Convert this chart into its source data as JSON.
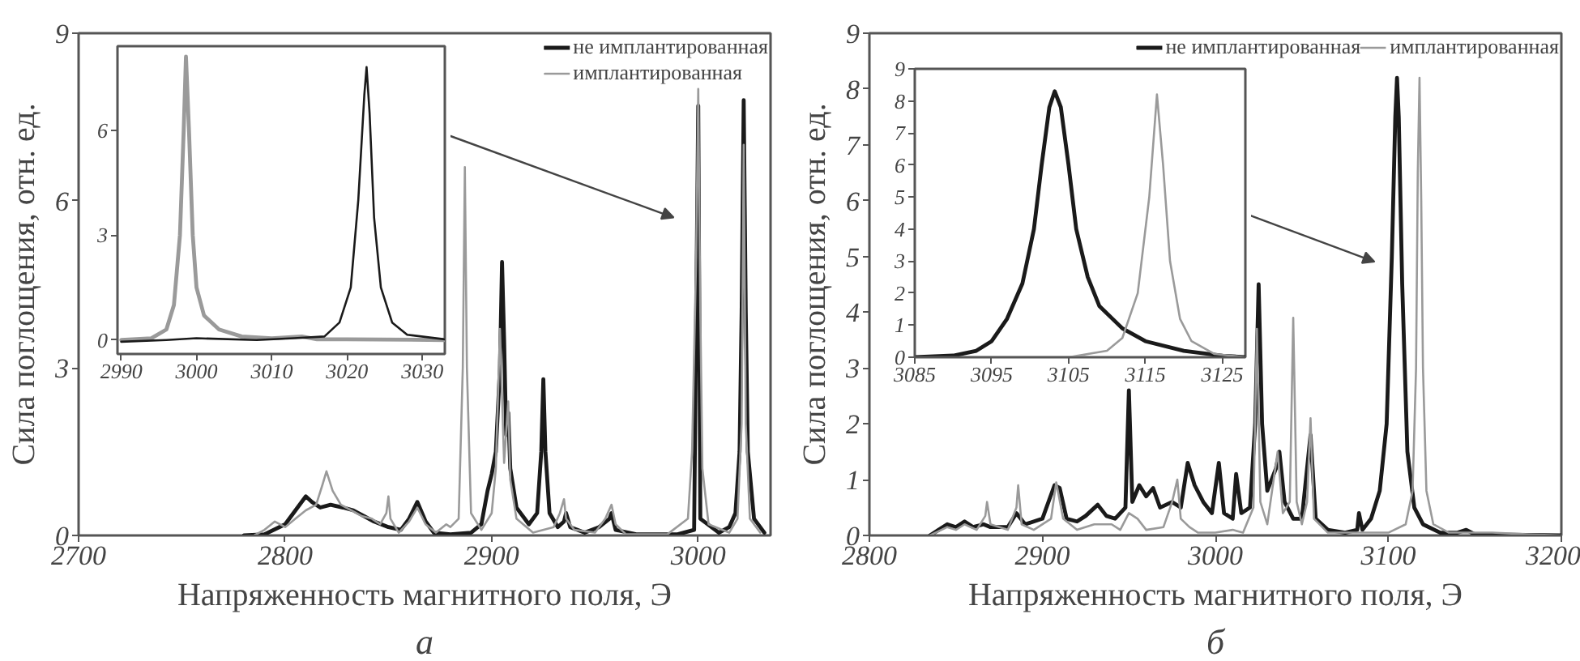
{
  "chart_data": [
    {
      "type": "line",
      "xlabel": "Напряженность магнитного поля, Э",
      "ylabel": "Сила поглощения, отн. ед.",
      "annotations": [
        "а"
      ],
      "xlim": [
        2700,
        3035
      ],
      "ylim": [
        0,
        9
      ],
      "xticks": [
        2700,
        2800,
        2900,
        3000
      ],
      "yticks": [
        0,
        3,
        6,
        9
      ],
      "legend": "top right",
      "series": [
        {
          "name": "не имплантированная",
          "color": "#1a1a1a",
          "x": [
            2780,
            2790,
            2800,
            2805,
            2810,
            2813,
            2817,
            2822,
            2828,
            2833,
            2838,
            2843,
            2850,
            2856,
            2860,
            2864,
            2868,
            2872,
            2880,
            2890,
            2895,
            2898,
            2900,
            2902,
            2904,
            2905,
            2906,
            2907,
            2908,
            2909,
            2912,
            2918,
            2922,
            2924,
            2925,
            2926,
            2928,
            2932,
            2935,
            2936,
            2938,
            2945,
            2952,
            2957,
            2958,
            2960,
            2970,
            2990,
            2998,
            3000,
            3001,
            3010,
            3015,
            3018,
            3020,
            3021,
            3022,
            3023,
            3024,
            3027,
            3032
          ],
          "values": [
            0,
            0.02,
            0.2,
            0.45,
            0.7,
            0.6,
            0.5,
            0.55,
            0.5,
            0.45,
            0.35,
            0.25,
            0.15,
            0.1,
            0.3,
            0.6,
            0.25,
            0.05,
            0.02,
            0.05,
            0.2,
            0.8,
            1.1,
            1.5,
            3,
            4.9,
            3.5,
            1.8,
            2.2,
            1.2,
            0.5,
            0.2,
            0.4,
            1.5,
            2.8,
            1.5,
            0.4,
            0.15,
            0.25,
            0.4,
            0.15,
            0.05,
            0.15,
            0.3,
            0.4,
            0.1,
            0.02,
            0.02,
            0.1,
            7.7,
            0.3,
            0.05,
            0.15,
            0.4,
            1.5,
            4,
            7.8,
            4,
            1.5,
            0.3,
            0.05
          ]
        },
        {
          "name": "имплантированная",
          "color": "#9a9a9a",
          "x": [
            2785,
            2790,
            2795,
            2800,
            2805,
            2810,
            2815,
            2818,
            2820,
            2823,
            2827,
            2832,
            2837,
            2842,
            2846,
            2849,
            2850,
            2851,
            2855,
            2860,
            2864,
            2868,
            2873,
            2878,
            2880,
            2884,
            2886,
            2887,
            2888,
            2890,
            2895,
            2900,
            2902,
            2904,
            2905,
            2906,
            2908,
            2909,
            2912,
            2920,
            2930,
            2933,
            2935,
            2936,
            2940,
            2950,
            2955,
            2958,
            2960,
            2965,
            2985,
            2995,
            2997,
            2999,
            3000,
            3001,
            3002,
            3005,
            3015,
            3019,
            3021,
            3022,
            3023,
            3025,
            3030
          ],
          "values": [
            0,
            0.1,
            0.25,
            0.15,
            0.3,
            0.45,
            0.55,
            0.9,
            1.15,
            0.8,
            0.55,
            0.45,
            0.35,
            0.3,
            0.2,
            0.4,
            0.7,
            0.3,
            0.05,
            0.25,
            0.5,
            0.2,
            0.05,
            0.2,
            0.15,
            0.3,
            3,
            6.6,
            3,
            0.4,
            0.1,
            0.4,
            1.2,
            3.7,
            2.5,
            1.3,
            2.4,
            1,
            0.3,
            0.05,
            0.15,
            0.4,
            0.65,
            0.3,
            0.1,
            0.05,
            0.3,
            0.55,
            0.2,
            0.02,
            0.02,
            0.3,
            1.5,
            5,
            8,
            4,
            1.2,
            0.2,
            0.05,
            0.3,
            2,
            7,
            2,
            0.3,
            0.05
          ]
        }
      ]
    },
    {
      "type": "line",
      "xlim": [
        2989.5,
        3033
      ],
      "ylim": [
        -0.4,
        8.4
      ],
      "xticks": [
        2990,
        3000,
        3010,
        3020,
        3030
      ],
      "yticks": [
        0,
        3,
        6
      ],
      "series": [
        {
          "color": "#9a9a9a",
          "x": [
            2990,
            2994,
            2996,
            2997,
            2997.8,
            2998.3,
            2998.6,
            2999,
            2999.5,
            3000,
            3001,
            3003,
            3006,
            3010,
            3014,
            3016,
            3020,
            3033
          ],
          "values": [
            0,
            0.05,
            0.3,
            1,
            3,
            6,
            8.1,
            6,
            3,
            1.5,
            0.7,
            0.3,
            0.1,
            0.05,
            0.1,
            0.02,
            0.02,
            0
          ]
        },
        {
          "color": "#1a1a1a",
          "x": [
            2990,
            2996,
            3000,
            3008,
            3013,
            3017,
            3019,
            3020.5,
            3021.5,
            3022.3,
            3022.6,
            3023,
            3023.6,
            3024.5,
            3026,
            3028,
            3033
          ],
          "values": [
            -0.05,
            0,
            0.05,
            0,
            0.05,
            0.1,
            0.5,
            1.5,
            4,
            7,
            7.8,
            6.5,
            3.5,
            1.5,
            0.5,
            0.15,
            0.02
          ]
        }
      ]
    },
    {
      "type": "line",
      "xlabel": "Напряженность магнитного поля, Э",
      "ylabel": "Сила поглощения, отн. ед.",
      "annotations": [
        "б"
      ],
      "xlim": [
        2800,
        3200
      ],
      "ylim": [
        0,
        9
      ],
      "xticks": [
        2800,
        2900,
        3000,
        3100,
        3200
      ],
      "yticks": [
        0,
        1,
        2,
        3,
        4,
        5,
        6,
        7,
        8,
        9
      ],
      "legend": "top right",
      "series": [
        {
          "name": "не имплантированная",
          "color": "#1a1a1a",
          "x": [
            2835,
            2840,
            2845,
            2850,
            2855,
            2860,
            2866,
            2870,
            2880,
            2885,
            2890,
            2900,
            2907,
            2910,
            2914,
            2920,
            2925,
            2932,
            2937,
            2942,
            2948,
            2950,
            2952,
            2956,
            2960,
            2964,
            2968,
            2975,
            2980,
            2984,
            2988,
            2993,
            2998,
            3002,
            3005,
            3010,
            3012,
            3015,
            3020,
            3023,
            3025,
            3027,
            3030,
            3035,
            3037,
            3040,
            3045,
            3050,
            3055,
            3058,
            3065,
            3075,
            3082,
            3083,
            3085,
            3090,
            3095,
            3099,
            3102,
            3104,
            3105,
            3106,
            3108,
            3111,
            3115,
            3120,
            3130,
            3140,
            3145,
            3150,
            3200
          ],
          "values": [
            0,
            0.1,
            0.2,
            0.15,
            0.25,
            0.15,
            0.2,
            0.15,
            0.15,
            0.4,
            0.2,
            0.3,
            0.9,
            0.85,
            0.3,
            0.25,
            0.35,
            0.55,
            0.35,
            0.3,
            0.5,
            2.6,
            0.6,
            0.9,
            0.7,
            0.85,
            0.5,
            0.6,
            0.5,
            1.3,
            0.9,
            0.6,
            0.4,
            1.3,
            0.4,
            0.3,
            1.1,
            0.4,
            0.5,
            2,
            4.5,
            2,
            0.8,
            1.2,
            1.5,
            0.6,
            0.3,
            0.3,
            1.8,
            0.3,
            0.1,
            0.05,
            0.1,
            0.4,
            0.1,
            0.3,
            0.8,
            2,
            5,
            7.5,
            8.2,
            7.5,
            4.5,
            1.5,
            0.5,
            0.2,
            0.05,
            0.05,
            0.1,
            0.02,
            0
          ]
        },
        {
          "name": "имплантированная",
          "color": "#9a9a9a",
          "x": [
            2835,
            2845,
            2850,
            2855,
            2862,
            2867,
            2868,
            2870,
            2880,
            2885,
            2886,
            2888,
            2895,
            2905,
            2908,
            2912,
            2920,
            2930,
            2940,
            2945,
            2950,
            2955,
            2960,
            2970,
            2975,
            2978,
            2980,
            2985,
            2990,
            3000,
            3010,
            3016,
            3022,
            3024,
            3026,
            3030,
            3036,
            3039,
            3043,
            3045,
            3047,
            3050,
            3053,
            3055,
            3057,
            3065,
            3100,
            3110,
            3114,
            3116,
            3117,
            3118,
            3119,
            3120,
            3122,
            3126,
            3135,
            3160,
            3180,
            3200
          ],
          "values": [
            0,
            0.15,
            0.1,
            0.2,
            0.1,
            0.35,
            0.6,
            0.2,
            0.1,
            0.5,
            0.9,
            0.2,
            0.1,
            0.3,
            0.95,
            0.3,
            0.1,
            0.2,
            0.2,
            0.1,
            0.4,
            0.3,
            0.1,
            0.15,
            0.6,
            1,
            0.3,
            0.15,
            0.05,
            0.05,
            0.1,
            0.05,
            0.5,
            3.7,
            0.6,
            0.2,
            1.5,
            0.4,
            0.6,
            3.9,
            0.6,
            0.2,
            0.6,
            2.1,
            0.3,
            0.05,
            0.05,
            0.2,
            0.8,
            3,
            6.5,
            8.2,
            6,
            3,
            0.8,
            0.2,
            0.05,
            0.05,
            0.02,
            0
          ]
        }
      ]
    },
    {
      "type": "line",
      "xlim": [
        3085,
        3128
      ],
      "ylim": [
        0,
        9
      ],
      "xticks": [
        3085,
        3095,
        3105,
        3115,
        3125
      ],
      "yticks": [
        0,
        1,
        2,
        3,
        4,
        5,
        6,
        7,
        8,
        9
      ],
      "series": [
        {
          "color": "#1a1a1a",
          "x": [
            3085,
            3090,
            3093,
            3095,
            3097,
            3099,
            3100.5,
            3101.5,
            3102.5,
            3103.2,
            3104,
            3105,
            3106,
            3107.5,
            3109,
            3112,
            3115,
            3120,
            3125,
            3128
          ],
          "values": [
            0,
            0.05,
            0.2,
            0.5,
            1.2,
            2.3,
            4,
            6,
            7.8,
            8.3,
            7.8,
            6,
            4,
            2.5,
            1.6,
            0.9,
            0.5,
            0.2,
            0.05,
            0
          ]
        },
        {
          "color": "#9a9a9a",
          "x": [
            3085,
            3105,
            3110,
            3112,
            3114,
            3115.5,
            3116.5,
            3117.3,
            3118.2,
            3119.5,
            3121,
            3124,
            3128
          ],
          "values": [
            0,
            0,
            0.2,
            0.6,
            2,
            5,
            8.2,
            6,
            3,
            1.2,
            0.5,
            0.1,
            0
          ]
        }
      ]
    }
  ]
}
